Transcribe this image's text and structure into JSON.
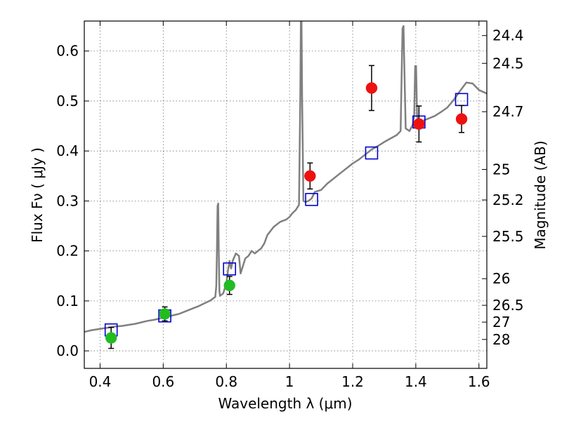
{
  "chart_data": {
    "type": "scatter",
    "xlabel": "Wavelength  λ (μm)",
    "ylabel": "Flux  Fν  ( μJy )",
    "ylabel_right": "Magnitude (AB)",
    "xlim": [
      0.35,
      1.625
    ],
    "ylim": [
      -0.035,
      0.66
    ],
    "x_ticks": [
      0.4,
      0.6,
      0.8,
      1.0,
      1.2,
      1.4,
      1.6
    ],
    "x_tick_labels": [
      "0.4",
      "0.6",
      "0.8",
      "1",
      "1.2",
      "1.4",
      "1.6"
    ],
    "y_ticks": [
      0.0,
      0.1,
      0.2,
      0.3,
      0.4,
      0.5,
      0.6
    ],
    "y_tick_labels": [
      "0.0",
      "0.1",
      "0.2",
      "0.3",
      "0.4",
      "0.5",
      "0.6"
    ],
    "right_ticks": [
      {
        "flux": 0.6309,
        "label": "24.4"
      },
      {
        "flux": 0.5754,
        "label": "24.5"
      },
      {
        "flux": 0.4786,
        "label": "24.7"
      },
      {
        "flux": 0.3631,
        "label": "25"
      },
      {
        "flux": 0.302,
        "label": "25.2"
      },
      {
        "flux": 0.2291,
        "label": "25.5"
      },
      {
        "flux": 0.1445,
        "label": "26"
      },
      {
        "flux": 0.0912,
        "label": "26.5"
      },
      {
        "flux": 0.0575,
        "label": "27"
      },
      {
        "flux": 0.0229,
        "label": "28"
      }
    ],
    "grid": true,
    "series": [
      {
        "kind": "line",
        "color": "#808080",
        "points": [
          [
            0.35,
            0.038
          ],
          [
            0.37,
            0.041
          ],
          [
            0.39,
            0.043
          ],
          [
            0.41,
            0.045
          ],
          [
            0.43,
            0.047
          ],
          [
            0.45,
            0.049
          ],
          [
            0.47,
            0.05
          ],
          [
            0.49,
            0.052
          ],
          [
            0.51,
            0.054
          ],
          [
            0.53,
            0.057
          ],
          [
            0.55,
            0.06
          ],
          [
            0.57,
            0.062
          ],
          [
            0.59,
            0.065
          ],
          [
            0.61,
            0.068
          ],
          [
            0.63,
            0.071
          ],
          [
            0.65,
            0.074
          ],
          [
            0.67,
            0.079
          ],
          [
            0.69,
            0.084
          ],
          [
            0.71,
            0.089
          ],
          [
            0.73,
            0.095
          ],
          [
            0.75,
            0.101
          ],
          [
            0.76,
            0.106
          ],
          [
            0.765,
            0.108
          ],
          [
            0.768,
            0.13
          ],
          [
            0.77,
            0.2
          ],
          [
            0.772,
            0.29
          ],
          [
            0.774,
            0.295
          ],
          [
            0.776,
            0.2
          ],
          [
            0.778,
            0.12
          ],
          [
            0.78,
            0.11
          ],
          [
            0.79,
            0.115
          ],
          [
            0.8,
            0.135
          ],
          [
            0.805,
            0.16
          ],
          [
            0.81,
            0.18
          ],
          [
            0.815,
            0.165
          ],
          [
            0.82,
            0.18
          ],
          [
            0.83,
            0.195
          ],
          [
            0.84,
            0.19
          ],
          [
            0.845,
            0.155
          ],
          [
            0.85,
            0.165
          ],
          [
            0.86,
            0.185
          ],
          [
            0.87,
            0.19
          ],
          [
            0.88,
            0.2
          ],
          [
            0.89,
            0.195
          ],
          [
            0.9,
            0.2
          ],
          [
            0.91,
            0.205
          ],
          [
            0.92,
            0.215
          ],
          [
            0.93,
            0.232
          ],
          [
            0.95,
            0.248
          ],
          [
            0.97,
            0.258
          ],
          [
            0.99,
            0.263
          ],
          [
            1.0,
            0.268
          ],
          [
            1.01,
            0.276
          ],
          [
            1.02,
            0.282
          ],
          [
            1.03,
            0.292
          ],
          [
            1.034,
            0.5
          ],
          [
            1.036,
            0.66
          ],
          [
            1.038,
            0.66
          ],
          [
            1.04,
            0.5
          ],
          [
            1.044,
            0.3
          ],
          [
            1.05,
            0.298
          ],
          [
            1.06,
            0.3
          ],
          [
            1.07,
            0.305
          ],
          [
            1.08,
            0.318
          ],
          [
            1.1,
            0.322
          ],
          [
            1.12,
            0.335
          ],
          [
            1.14,
            0.345
          ],
          [
            1.16,
            0.355
          ],
          [
            1.18,
            0.365
          ],
          [
            1.2,
            0.375
          ],
          [
            1.22,
            0.383
          ],
          [
            1.24,
            0.393
          ],
          [
            1.26,
            0.403
          ],
          [
            1.28,
            0.41
          ],
          [
            1.3,
            0.418
          ],
          [
            1.32,
            0.425
          ],
          [
            1.34,
            0.432
          ],
          [
            1.352,
            0.44
          ],
          [
            1.355,
            0.55
          ],
          [
            1.358,
            0.645
          ],
          [
            1.361,
            0.65
          ],
          [
            1.364,
            0.56
          ],
          [
            1.368,
            0.445
          ],
          [
            1.38,
            0.44
          ],
          [
            1.39,
            0.452
          ],
          [
            1.395,
            0.47
          ],
          [
            1.398,
            0.57
          ],
          [
            1.401,
            0.57
          ],
          [
            1.404,
            0.47
          ],
          [
            1.41,
            0.45
          ],
          [
            1.42,
            0.46
          ],
          [
            1.44,
            0.465
          ],
          [
            1.46,
            0.47
          ],
          [
            1.48,
            0.478
          ],
          [
            1.5,
            0.487
          ],
          [
            1.52,
            0.502
          ],
          [
            1.54,
            0.52
          ],
          [
            1.56,
            0.537
          ],
          [
            1.58,
            0.535
          ],
          [
            1.6,
            0.522
          ],
          [
            1.625,
            0.515
          ]
        ]
      },
      {
        "kind": "open-square",
        "color": "#0000cc",
        "points": [
          [
            0.435,
            0.042
          ],
          [
            0.605,
            0.07
          ],
          [
            0.81,
            0.164
          ],
          [
            1.07,
            0.303
          ],
          [
            1.26,
            0.396
          ],
          [
            1.41,
            0.458
          ],
          [
            1.545,
            0.503
          ]
        ]
      },
      {
        "kind": "filled-circle",
        "color": "#22bb22",
        "points": [
          {
            "x": 0.435,
            "y": 0.026,
            "err": 0.021
          },
          {
            "x": 0.605,
            "y": 0.074,
            "err": 0.014
          },
          {
            "x": 0.81,
            "y": 0.131,
            "err": 0.018
          }
        ]
      },
      {
        "kind": "filled-circle",
        "color": "#ee1111",
        "points": [
          {
            "x": 1.065,
            "y": 0.35,
            "err": 0.026
          },
          {
            "x": 1.26,
            "y": 0.526,
            "err": 0.045
          },
          {
            "x": 1.41,
            "y": 0.454,
            "err": 0.036
          },
          {
            "x": 1.545,
            "y": 0.464,
            "err": 0.027
          }
        ]
      }
    ]
  }
}
